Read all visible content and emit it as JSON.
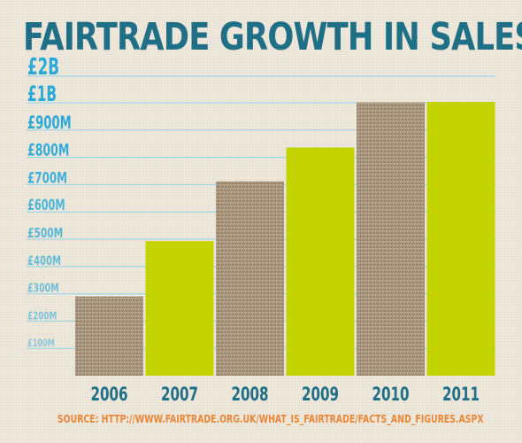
{
  "title": "FAIRTRADE GROWTH IN SALES",
  "source": "SOURCE: HTTP://WWW.FAIRTRADE.ORG.UK/WHAT_IS_FAIRTRADE/FACTS_AND_FIGURES.ASPX",
  "colors": {
    "title": "#1f6f86",
    "axis_labels": "#29a9d8",
    "gridlines": "#8fd3ea",
    "bar_green": "#c3d300",
    "bar_burlap": "#a4927a",
    "source": "#e98737"
  },
  "chart_data": {
    "type": "bar",
    "title": "FAIRTRADE GROWTH IN SALES",
    "categories": [
      "2006",
      "2007",
      "2008",
      "2009",
      "2010",
      "2011"
    ],
    "values": [
      290,
      493,
      712,
      836,
      1017,
      1032
    ],
    "value_units": "£M",
    "bar_styles": [
      "burlap",
      "green",
      "burlap",
      "green",
      "burlap",
      "green"
    ],
    "y_tick_labels": [
      {
        "label": "£100M",
        "value": 100
      },
      {
        "label": "£200M",
        "value": 200
      },
      {
        "label": "£300M",
        "value": 300
      },
      {
        "label": "£400M",
        "value": 400
      },
      {
        "label": "£500M",
        "value": 500
      },
      {
        "label": "£600M",
        "value": 600
      },
      {
        "label": "£700M",
        "value": 700
      },
      {
        "label": "£800M",
        "value": 800
      },
      {
        "label": "£900M",
        "value": 900
      },
      {
        "label": "£1B",
        "value": 1000
      },
      {
        "label": "£2B",
        "value": 2000
      }
    ],
    "xlabel": "",
    "ylabel": "",
    "grid": true,
    "legend": "none"
  }
}
